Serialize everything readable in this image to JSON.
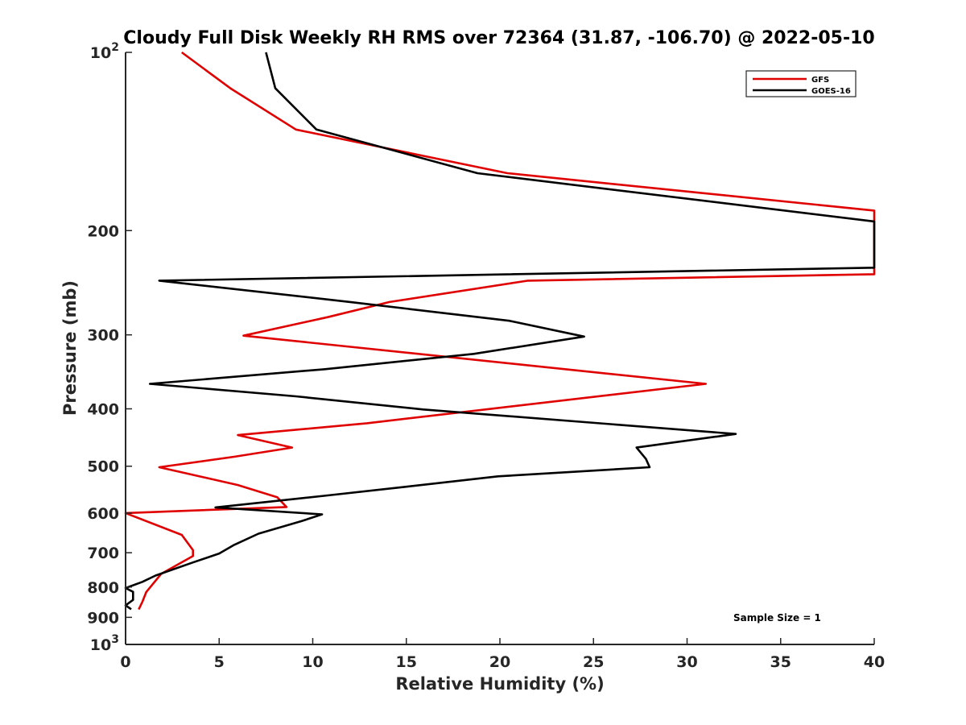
{
  "chart_data": {
    "type": "line",
    "title": "Cloudy Full Disk Weekly RH RMS over 72364 (31.87, -106.70) @ 2022-05-10",
    "xlabel": "Relative Humidity (%)",
    "ylabel": "Pressure (mb)",
    "xlim": [
      0,
      40
    ],
    "ylim": [
      100,
      1000
    ],
    "yscale": "log",
    "y_reversed": true,
    "grid": false,
    "legend_position": "top-right",
    "x_ticks": [
      "0",
      "5",
      "10",
      "15",
      "20",
      "25",
      "30",
      "35",
      "40"
    ],
    "y_ticks": [
      {
        "value": 100,
        "base": "10",
        "exp": "2"
      },
      {
        "value": 200,
        "label": "200"
      },
      {
        "value": 300,
        "label": "300"
      },
      {
        "value": 400,
        "label": "400"
      },
      {
        "value": 500,
        "label": "500"
      },
      {
        "value": 600,
        "label": "600"
      },
      {
        "value": 700,
        "label": "700"
      },
      {
        "value": 800,
        "label": "800"
      },
      {
        "value": 900,
        "label": "900"
      },
      {
        "value": 1000,
        "base": "10",
        "exp": "3"
      }
    ],
    "annotation": "Sample Size = 1",
    "series": [
      {
        "name": "GFS",
        "color": "#e00000",
        "points": [
          [
            3.0,
            100
          ],
          [
            5.6,
            115
          ],
          [
            9.1,
            135
          ],
          [
            20.4,
            160
          ],
          [
            40.0,
            185
          ],
          [
            40.0,
            237
          ],
          [
            21.5,
            243
          ],
          [
            14.1,
            264
          ],
          [
            10.8,
            280
          ],
          [
            6.3,
            301
          ],
          [
            31.0,
            363
          ],
          [
            12.9,
            423
          ],
          [
            6.0,
            443
          ],
          [
            8.9,
            465
          ],
          [
            5.8,
            482
          ],
          [
            1.8,
            502
          ],
          [
            6.0,
            538
          ],
          [
            8.1,
            564
          ],
          [
            8.6,
            586
          ],
          [
            0.0,
            600
          ],
          [
            3.0,
            653
          ],
          [
            3.6,
            693
          ],
          [
            3.6,
            709
          ],
          [
            1.9,
            760
          ],
          [
            1.1,
            816
          ],
          [
            0.9,
            847
          ],
          [
            0.7,
            873
          ]
        ]
      },
      {
        "name": "GOES-16",
        "color": "#000000",
        "points": [
          [
            7.5,
            100
          ],
          [
            8.0,
            115
          ],
          [
            10.2,
            135
          ],
          [
            18.8,
            160
          ],
          [
            40.0,
            193
          ],
          [
            40.0,
            231
          ],
          [
            1.8,
            243
          ],
          [
            12.0,
            264
          ],
          [
            20.5,
            284
          ],
          [
            24.5,
            302
          ],
          [
            18.6,
            323
          ],
          [
            10.6,
            343
          ],
          [
            1.3,
            363
          ],
          [
            9.1,
            381
          ],
          [
            15.9,
            401
          ],
          [
            32.6,
            441
          ],
          [
            27.3,
            465
          ],
          [
            27.8,
            486
          ],
          [
            28.0,
            502
          ],
          [
            19.9,
            520
          ],
          [
            15.1,
            541
          ],
          [
            10.6,
            561
          ],
          [
            4.8,
            587
          ],
          [
            10.5,
            603
          ],
          [
            9.4,
            619
          ],
          [
            7.1,
            650
          ],
          [
            5.8,
            679
          ],
          [
            5.0,
            702
          ],
          [
            3.6,
            727
          ],
          [
            1.6,
            765
          ],
          [
            0.9,
            784
          ],
          [
            0.0,
            803
          ],
          [
            0.4,
            815
          ],
          [
            0.4,
            841
          ],
          [
            0.0,
            859
          ],
          [
            0.3,
            872
          ]
        ]
      }
    ]
  }
}
